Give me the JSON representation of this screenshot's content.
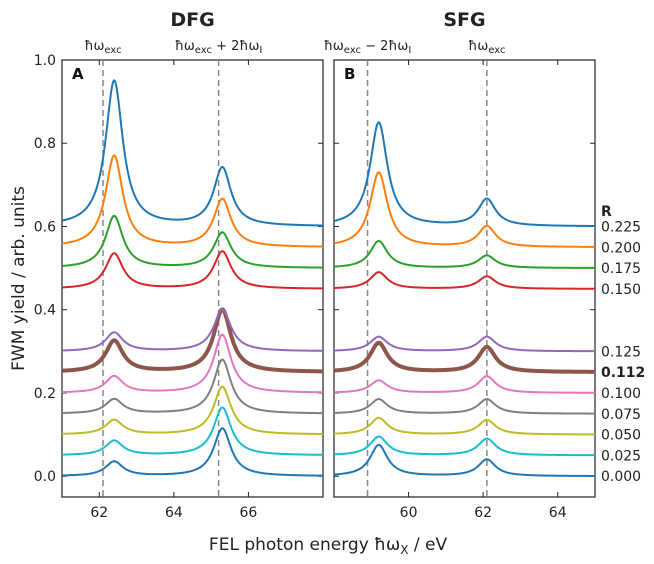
{
  "chart_data": {
    "type": "line",
    "ylabel": "FWM yield / arb. units",
    "xlabel": "FEL photon energy ħω",
    "xlabel_sub": "X",
    "xlabel_unit": " / eV",
    "ylim": [
      -0.05,
      1.0
    ],
    "yticks": [
      "0.0",
      "0.2",
      "0.4",
      "0.6",
      "0.8",
      "1.0"
    ],
    "yticks_values": [
      0.0,
      0.2,
      0.4,
      0.6,
      0.8,
      1.0
    ],
    "r_header": "R",
    "series_colors": [
      "#1f77b4",
      "#17becf",
      "#bcbd22",
      "#7f7f7f",
      "#e377c2",
      "#8c564b",
      "#9467bd",
      "#d62728",
      "#2ca02c",
      "#ff7f0e",
      "#1f77b4"
    ],
    "series": [
      {
        "R": "0.000",
        "offset": 0.0,
        "bold": false
      },
      {
        "R": "0.025",
        "offset": 0.05,
        "bold": false
      },
      {
        "R": "0.050",
        "offset": 0.1,
        "bold": false
      },
      {
        "R": "0.075",
        "offset": 0.15,
        "bold": false
      },
      {
        "R": "0.100",
        "offset": 0.2,
        "bold": false
      },
      {
        "R": "0.112",
        "offset": 0.25,
        "bold": true
      },
      {
        "R": "0.125",
        "offset": 0.3,
        "bold": false
      },
      {
        "R": "0.150",
        "offset": 0.45,
        "bold": false
      },
      {
        "R": "0.175",
        "offset": 0.5,
        "bold": false
      },
      {
        "R": "0.200",
        "offset": 0.55,
        "bold": false
      },
      {
        "R": "0.225",
        "offset": 0.6,
        "bold": false
      }
    ],
    "panels": [
      {
        "tag": "A",
        "title": "DFG",
        "xlim": [
          61.0,
          68.0
        ],
        "xticks": [
          "62",
          "64",
          "66"
        ],
        "xticks_values": [
          62,
          64,
          66
        ],
        "vlines": [
          62.1,
          65.2
        ],
        "annotations": [
          {
            "x": 62.1,
            "parts": [
              [
                "ħω",
                ""
              ],
              [
                "exc",
                "sub"
              ]
            ]
          },
          {
            "x": 65.2,
            "parts": [
              [
                "ħω",
                ""
              ],
              [
                "exc",
                "sub"
              ],
              [
                " + 2ħω",
                ""
              ],
              [
                "I",
                "sub"
              ]
            ]
          }
        ],
        "peak1_center": 62.4,
        "peak2_center": 65.3,
        "peak1_amp": [
          0.035,
          0.035,
          0.035,
          0.035,
          0.04,
          0.075,
          0.045,
          0.085,
          0.125,
          0.22,
          0.35
        ],
        "peak2_amp": [
          0.115,
          0.115,
          0.115,
          0.13,
          0.14,
          0.15,
          0.1,
          0.09,
          0.085,
          0.115,
          0.14
        ]
      },
      {
        "tag": "B",
        "title": "SFG",
        "xlim": [
          58.0,
          65.0
        ],
        "xticks": [
          "60",
          "62",
          "64"
        ],
        "xticks_values": [
          60,
          62,
          64
        ],
        "vlines": [
          58.9,
          62.1
        ],
        "annotations": [
          {
            "x": 58.9,
            "parts": [
              [
                "ħω",
                ""
              ],
              [
                "exc",
                "sub"
              ],
              [
                " − 2ħω",
                ""
              ],
              [
                "I",
                "sub"
              ]
            ]
          },
          {
            "x": 62.1,
            "parts": [
              [
                "ħω",
                ""
              ],
              [
                "exc",
                "sub"
              ]
            ]
          }
        ],
        "peak1_center": 59.2,
        "peak2_center": 62.1,
        "peak1_amp": [
          0.075,
          0.045,
          0.04,
          0.035,
          0.03,
          0.07,
          0.035,
          0.04,
          0.065,
          0.18,
          0.25
        ],
        "peak2_amp": [
          0.04,
          0.04,
          0.035,
          0.035,
          0.04,
          0.06,
          0.035,
          0.03,
          0.03,
          0.05,
          0.065
        ]
      }
    ]
  }
}
